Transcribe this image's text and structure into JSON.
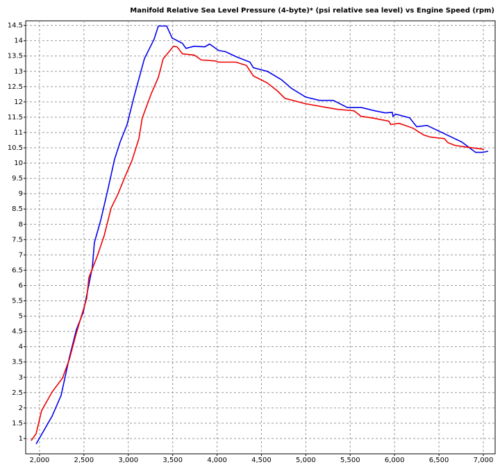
{
  "chart_data": {
    "type": "line",
    "title": "Manifold Relative Sea Level Pressure (4-byte)* (psi relative sea level) vs Engine Speed (rpm)",
    "xlim": [
      1844,
      7133
    ],
    "ylim": [
      0.5,
      14.65
    ],
    "xticks": [
      {
        "value": 2000,
        "label": "2,000"
      },
      {
        "value": 2500,
        "label": "2,500"
      },
      {
        "value": 3000,
        "label": "3,000"
      },
      {
        "value": 3500,
        "label": "3,500"
      },
      {
        "value": 4000,
        "label": "4,000"
      },
      {
        "value": 4500,
        "label": "4,500"
      },
      {
        "value": 5000,
        "label": "5,000"
      },
      {
        "value": 5500,
        "label": "5,500"
      },
      {
        "value": 6000,
        "label": "6,000"
      },
      {
        "value": 6500,
        "label": "6,500"
      },
      {
        "value": 7000,
        "label": "7,000"
      }
    ],
    "yticks": [
      1,
      1.5,
      2,
      2.5,
      3,
      3.5,
      4,
      4.5,
      5,
      5.5,
      6,
      6.5,
      7,
      7.5,
      8,
      8.5,
      9,
      9.5,
      10,
      10.5,
      11,
      11.5,
      12,
      12.5,
      13,
      13.5,
      14,
      14.5
    ],
    "grid": true,
    "series": [
      {
        "color": "#0000ee",
        "x": [
          1961,
          2141,
          2243,
          2336,
          2415,
          2493,
          2595,
          2618,
          2689,
          2767,
          2845,
          2908,
          2986,
          3064,
          3181,
          3291,
          3338,
          3432,
          3493,
          3611,
          3650,
          3744,
          3861,
          3916,
          4018,
          4096,
          4213,
          4370,
          4409,
          4566,
          4723,
          4840,
          4997,
          5153,
          5310,
          5466,
          5622,
          5779,
          5896,
          5974,
          5982,
          6014,
          6170,
          6249,
          6366,
          6561,
          6757,
          6913,
          6992,
          7055
        ],
        "values": [
          0.82,
          1.73,
          2.41,
          3.65,
          4.56,
          5.13,
          6.6,
          7.4,
          8.13,
          9.1,
          10.12,
          10.69,
          11.26,
          12.16,
          13.41,
          14.05,
          14.48,
          14.48,
          14.09,
          13.91,
          13.75,
          13.82,
          13.8,
          13.89,
          13.68,
          13.64,
          13.48,
          13.3,
          13.12,
          13.0,
          12.73,
          12.44,
          12.16,
          12.05,
          12.05,
          11.82,
          11.82,
          11.71,
          11.64,
          11.66,
          11.53,
          11.6,
          11.48,
          11.19,
          11.23,
          10.96,
          10.69,
          10.35,
          10.35,
          10.39
        ]
      },
      {
        "color": "#ee0000",
        "x": [
          1906,
          1961,
          2023,
          2141,
          2258,
          2336,
          2415,
          2532,
          2556,
          2649,
          2728,
          2806,
          2884,
          2962,
          3041,
          3119,
          3158,
          3260,
          3338,
          3393,
          3510,
          3549,
          3611,
          3744,
          3822,
          3978,
          4018,
          4213,
          4331,
          4409,
          4566,
          4683,
          4762,
          4997,
          5231,
          5349,
          5544,
          5622,
          5740,
          5935,
          5958,
          6052,
          6209,
          6327,
          6405,
          6561,
          6600,
          6679,
          6796,
          7008
        ],
        "values": [
          0.93,
          1.16,
          1.91,
          2.52,
          2.97,
          3.59,
          4.45,
          5.58,
          6.26,
          6.95,
          7.63,
          8.53,
          8.99,
          9.55,
          10.08,
          10.8,
          11.48,
          12.28,
          12.8,
          13.41,
          13.82,
          13.8,
          13.57,
          13.53,
          13.37,
          13.34,
          13.3,
          13.3,
          13.19,
          12.85,
          12.62,
          12.35,
          12.12,
          11.94,
          11.82,
          11.76,
          11.71,
          11.53,
          11.48,
          11.37,
          11.26,
          11.3,
          11.14,
          10.92,
          10.85,
          10.8,
          10.67,
          10.58,
          10.53,
          10.45
        ]
      }
    ]
  }
}
